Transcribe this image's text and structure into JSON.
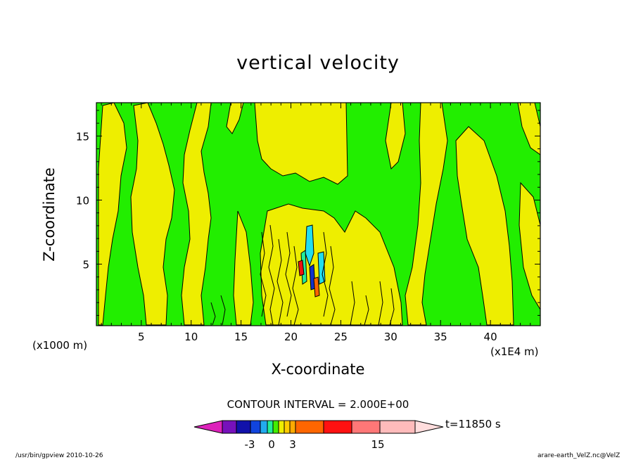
{
  "chart_data": {
    "type": "heatmap",
    "title": "vertical velocity",
    "xlabel": "X-coordinate",
    "ylabel": "Z-coordinate",
    "x_unit_left": "(x1000 m)",
    "x_unit_right": "(x1E4 m)",
    "xlim": [
      0.5,
      45
    ],
    "ylim": [
      0.2,
      17.6
    ],
    "x_ticks": [
      5,
      10,
      15,
      20,
      25,
      30,
      35,
      40
    ],
    "y_ticks": [
      5,
      10,
      15
    ],
    "x_tick_labels": [
      "5",
      "10",
      "15",
      "20",
      "25",
      "30",
      "35",
      "40"
    ],
    "y_tick_labels": [
      "5",
      "10",
      "15"
    ],
    "contour_interval_text": "CONTOUR INTERVAL = 2.000E+00",
    "time_label": "t=11850 s",
    "colorbar": {
      "colors": [
        "#dd22bb",
        "#7711bb",
        "#1111aa",
        "#1144dd",
        "#22aaee",
        "#22ee99",
        "#44ee00",
        "#eeee00",
        "#ffcc00",
        "#ffaa00",
        "#ff6600",
        "#ff1111",
        "#ff7777",
        "#ffbbbb",
        "#ffdddd"
      ],
      "tick_labels": [
        "-3",
        "0",
        "3",
        "15"
      ],
      "tick_positions": [
        -3,
        0,
        3,
        15
      ]
    },
    "regions": {
      "positive_color": "#eeee00",
      "negative_color": "#22ee00",
      "cyan": "#22ddee",
      "blue": "#1133cc",
      "red": "#ee1111"
    }
  },
  "footer": {
    "left": "/usr/bin/gpview  2010-10-26",
    "right": "arare-earth_VelZ.nc@VelZ"
  }
}
